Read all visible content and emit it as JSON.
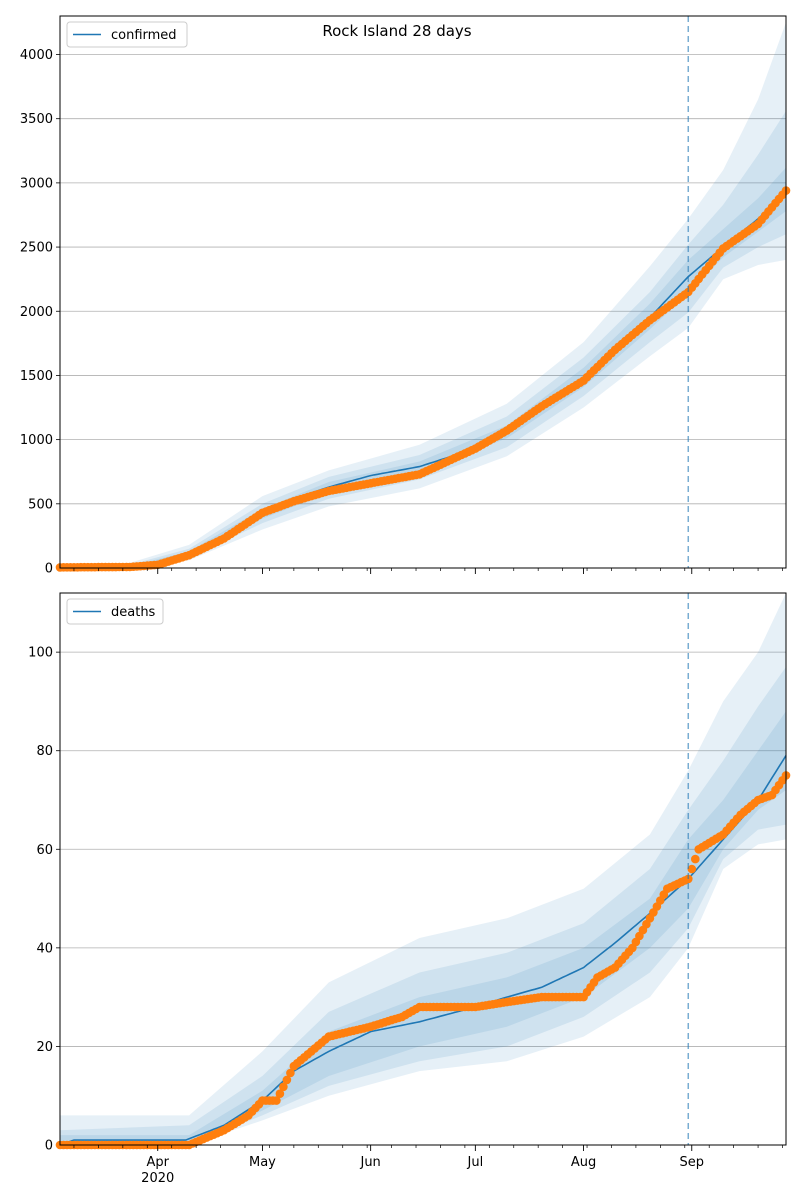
{
  "chart_data": [
    {
      "type": "line",
      "title": "Rock Island 28 days",
      "xlabel": "",
      "ylabel": "",
      "ylim": [
        0,
        4300
      ],
      "xlim": [
        "2020-03-04",
        "2020-09-28"
      ],
      "x_tick_labels": [
        {
          "date": "2020-04-01",
          "label": "Apr",
          "sub": "2020"
        },
        {
          "date": "2020-05-01",
          "label": "May",
          "sub": ""
        },
        {
          "date": "2020-06-01",
          "label": "Jun",
          "sub": ""
        },
        {
          "date": "2020-07-01",
          "label": "Jul",
          "sub": ""
        },
        {
          "date": "2020-08-01",
          "label": "Aug",
          "sub": ""
        },
        {
          "date": "2020-09-01",
          "label": "Sep",
          "sub": ""
        }
      ],
      "y_ticks": [
        0,
        500,
        1000,
        1500,
        2000,
        2500,
        3000,
        3500,
        4000
      ],
      "grid": "horizontal",
      "legend": {
        "placement": "top-left",
        "entries": [
          "confirmed"
        ]
      },
      "forecast_start": "2020-08-31",
      "colors": {
        "model": "#1f77b4",
        "observed": "#ff7f0e",
        "band": "#1f77b4"
      },
      "series": [
        {
          "name": "confirmed",
          "role": "model",
          "x": [
            "2020-03-04",
            "2020-03-24",
            "2020-04-01",
            "2020-04-10",
            "2020-04-20",
            "2020-05-01",
            "2020-05-10",
            "2020-05-20",
            "2020-06-01",
            "2020-06-15",
            "2020-07-01",
            "2020-07-10",
            "2020-07-20",
            "2020-08-01",
            "2020-08-10",
            "2020-08-20",
            "2020-08-31",
            "2020-09-10",
            "2020-09-20",
            "2020-09-28"
          ],
          "values": [
            0,
            5,
            30,
            110,
            240,
            420,
            540,
            630,
            720,
            790,
            930,
            1060,
            1250,
            1480,
            1680,
            1950,
            2270,
            2500,
            2720,
            2930
          ]
        },
        {
          "name": "",
          "role": "observed",
          "x": [
            "2020-03-04",
            "2020-03-24",
            "2020-04-01",
            "2020-04-10",
            "2020-04-20",
            "2020-05-01",
            "2020-05-10",
            "2020-05-20",
            "2020-06-01",
            "2020-06-15",
            "2020-07-01",
            "2020-07-10",
            "2020-07-20",
            "2020-08-01",
            "2020-08-10",
            "2020-08-20",
            "2020-08-31",
            "2020-09-10",
            "2020-09-20",
            "2020-09-28"
          ],
          "values": [
            5,
            8,
            25,
            100,
            230,
            430,
            520,
            600,
            660,
            730,
            930,
            1070,
            1260,
            1460,
            1700,
            1930,
            2150,
            2490,
            2680,
            2940
          ]
        }
      ],
      "bands": [
        {
          "level": "outer",
          "dates": [
            "2020-03-04",
            "2020-03-24",
            "2020-04-10",
            "2020-05-01",
            "2020-05-20",
            "2020-06-15",
            "2020-07-10",
            "2020-08-01",
            "2020-08-20",
            "2020-08-31",
            "2020-09-10",
            "2020-09-20",
            "2020-09-28"
          ],
          "lower": [
            0,
            0,
            60,
            300,
            480,
            620,
            870,
            1250,
            1650,
            1870,
            2250,
            2360,
            2400
          ],
          "upper": [
            0,
            40,
            180,
            560,
            760,
            960,
            1280,
            1760,
            2350,
            2720,
            3100,
            3650,
            4250
          ]
        },
        {
          "level": "middle",
          "dates": [
            "2020-03-04",
            "2020-03-24",
            "2020-04-10",
            "2020-05-01",
            "2020-05-20",
            "2020-06-15",
            "2020-07-10",
            "2020-08-01",
            "2020-08-20",
            "2020-08-31",
            "2020-09-10",
            "2020-09-20",
            "2020-09-28"
          ],
          "lower": [
            0,
            0,
            80,
            350,
            540,
            690,
            940,
            1340,
            1760,
            1990,
            2340,
            2500,
            2600
          ],
          "upper": [
            0,
            25,
            150,
            500,
            710,
            880,
            1180,
            1640,
            2150,
            2520,
            2830,
            3220,
            3560
          ]
        },
        {
          "level": "inner",
          "dates": [
            "2020-03-04",
            "2020-03-24",
            "2020-04-10",
            "2020-05-01",
            "2020-05-20",
            "2020-06-15",
            "2020-07-10",
            "2020-08-01",
            "2020-08-20",
            "2020-08-31",
            "2020-09-10",
            "2020-09-20",
            "2020-09-28"
          ],
          "lower": [
            0,
            0,
            95,
            385,
            585,
            745,
            1010,
            1410,
            1860,
            2140,
            2420,
            2620,
            2780
          ],
          "upper": [
            0,
            15,
            130,
            460,
            670,
            830,
            1110,
            1560,
            2060,
            2400,
            2640,
            2880,
            3120
          ]
        }
      ]
    },
    {
      "type": "line",
      "title": "",
      "xlabel": "",
      "ylabel": "",
      "ylim": [
        0,
        112
      ],
      "xlim": [
        "2020-03-04",
        "2020-09-28"
      ],
      "x_tick_labels": [
        {
          "date": "2020-04-01",
          "label": "Apr",
          "sub": "2020"
        },
        {
          "date": "2020-05-01",
          "label": "May",
          "sub": ""
        },
        {
          "date": "2020-06-01",
          "label": "Jun",
          "sub": ""
        },
        {
          "date": "2020-07-01",
          "label": "Jul",
          "sub": ""
        },
        {
          "date": "2020-08-01",
          "label": "Aug",
          "sub": ""
        },
        {
          "date": "2020-09-01",
          "label": "Sep",
          "sub": ""
        }
      ],
      "y_ticks": [
        0,
        20,
        40,
        60,
        80,
        100
      ],
      "grid": "horizontal",
      "legend": {
        "placement": "top-left",
        "entries": [
          "deaths"
        ]
      },
      "forecast_start": "2020-08-31",
      "colors": {
        "model": "#1f77b4",
        "observed": "#ff7f0e",
        "band": "#1f77b4"
      },
      "series": [
        {
          "name": "deaths",
          "role": "model",
          "x": [
            "2020-03-04",
            "2020-03-08",
            "2020-04-09",
            "2020-04-20",
            "2020-05-01",
            "2020-05-10",
            "2020-05-20",
            "2020-06-01",
            "2020-06-15",
            "2020-07-01",
            "2020-07-10",
            "2020-07-20",
            "2020-08-01",
            "2020-08-10",
            "2020-08-20",
            "2020-08-31",
            "2020-09-10",
            "2020-09-20",
            "2020-09-28"
          ],
          "values": [
            0,
            1,
            1,
            4,
            9,
            15,
            19,
            23,
            25,
            28,
            30,
            32,
            36,
            41,
            47,
            54,
            62,
            70,
            79
          ]
        },
        {
          "name": "",
          "role": "observed",
          "x": [
            "2020-03-04",
            "2020-04-01",
            "2020-04-10",
            "2020-04-20",
            "2020-04-27",
            "2020-05-01",
            "2020-05-05",
            "2020-05-10",
            "2020-05-20",
            "2020-06-01",
            "2020-06-10",
            "2020-06-15",
            "2020-07-01",
            "2020-07-10",
            "2020-07-20",
            "2020-08-01",
            "2020-08-05",
            "2020-08-10",
            "2020-08-15",
            "2020-08-20",
            "2020-08-25",
            "2020-08-31",
            "2020-09-03",
            "2020-09-10",
            "2020-09-15",
            "2020-09-20",
            "2020-09-24",
            "2020-09-28"
          ],
          "values": [
            0,
            0,
            0,
            3,
            6,
            9,
            9,
            16,
            22,
            24,
            26,
            28,
            28,
            29,
            30,
            30,
            34,
            36,
            40,
            46,
            52,
            54,
            60,
            63,
            67,
            70,
            71,
            75
          ]
        }
      ],
      "bands": [
        {
          "level": "outer",
          "dates": [
            "2020-03-04",
            "2020-04-10",
            "2020-05-01",
            "2020-05-20",
            "2020-06-15",
            "2020-07-10",
            "2020-08-01",
            "2020-08-20",
            "2020-08-31",
            "2020-09-10",
            "2020-09-20",
            "2020-09-28"
          ],
          "lower": [
            0,
            0,
            5,
            10,
            15,
            17,
            22,
            30,
            40,
            56,
            61,
            62
          ],
          "upper": [
            6,
            6,
            19,
            33,
            42,
            46,
            52,
            63,
            76,
            90,
            100,
            112
          ]
        },
        {
          "level": "middle",
          "dates": [
            "2020-03-04",
            "2020-04-10",
            "2020-05-01",
            "2020-05-20",
            "2020-06-15",
            "2020-07-10",
            "2020-08-01",
            "2020-08-20",
            "2020-08-31",
            "2020-09-10",
            "2020-09-20",
            "2020-09-28"
          ],
          "lower": [
            0,
            0,
            6,
            12,
            17,
            20,
            26,
            35,
            44,
            58,
            64,
            65
          ],
          "upper": [
            3,
            4,
            14,
            27,
            35,
            39,
            45,
            56,
            68,
            78,
            89,
            97
          ]
        },
        {
          "level": "inner",
          "dates": [
            "2020-03-04",
            "2020-04-10",
            "2020-05-01",
            "2020-05-20",
            "2020-06-15",
            "2020-07-10",
            "2020-08-01",
            "2020-08-20",
            "2020-08-31",
            "2020-09-10",
            "2020-09-20",
            "2020-09-28"
          ],
          "lower": [
            0,
            0,
            7,
            14,
            20,
            24,
            30,
            40,
            48,
            60,
            68,
            72
          ],
          "upper": [
            2,
            2,
            11,
            23,
            30,
            34,
            40,
            50,
            62,
            70,
            80,
            88
          ]
        }
      ]
    }
  ]
}
